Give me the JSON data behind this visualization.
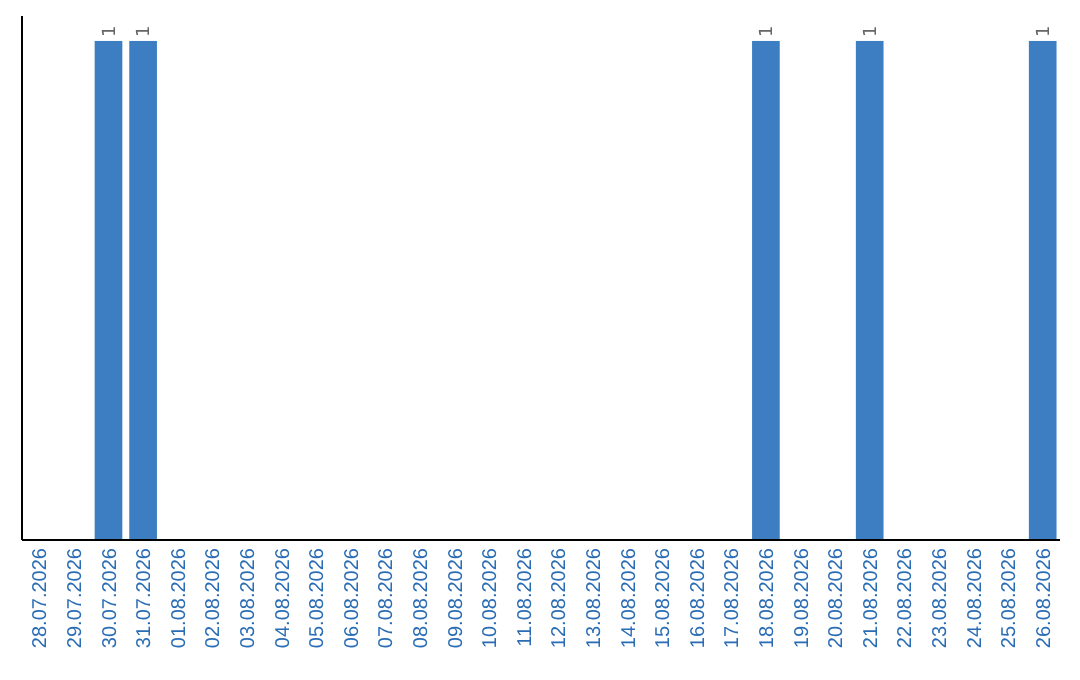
{
  "chart_data": {
    "type": "bar",
    "categories": [
      "28.07.2026",
      "29.07.2026",
      "30.07.2026",
      "31.07.2026",
      "01.08.2026",
      "02.08.2026",
      "03.08.2026",
      "04.08.2026",
      "05.08.2026",
      "06.08.2026",
      "07.08.2026",
      "08.08.2026",
      "09.08.2026",
      "10.08.2026",
      "11.08.2026",
      "12.08.2026",
      "13.08.2026",
      "14.08.2026",
      "15.08.2026",
      "16.08.2026",
      "17.08.2026",
      "18.08.2026",
      "19.08.2026",
      "20.08.2026",
      "21.08.2026",
      "22.08.2026",
      "23.08.2026",
      "24.08.2026",
      "25.08.2026",
      "26.08.2026"
    ],
    "values": [
      0,
      0,
      1,
      1,
      0,
      0,
      0,
      0,
      0,
      0,
      0,
      0,
      0,
      0,
      0,
      0,
      0,
      0,
      0,
      0,
      0,
      1,
      0,
      0,
      1,
      0,
      0,
      0,
      0,
      1
    ],
    "value_labels": [
      null,
      null,
      "1",
      "1",
      null,
      null,
      null,
      null,
      null,
      null,
      null,
      null,
      null,
      null,
      null,
      null,
      null,
      null,
      null,
      null,
      null,
      "1",
      null,
      null,
      "1",
      null,
      null,
      null,
      null,
      "1"
    ],
    "color": "#3d7ec2"
  }
}
